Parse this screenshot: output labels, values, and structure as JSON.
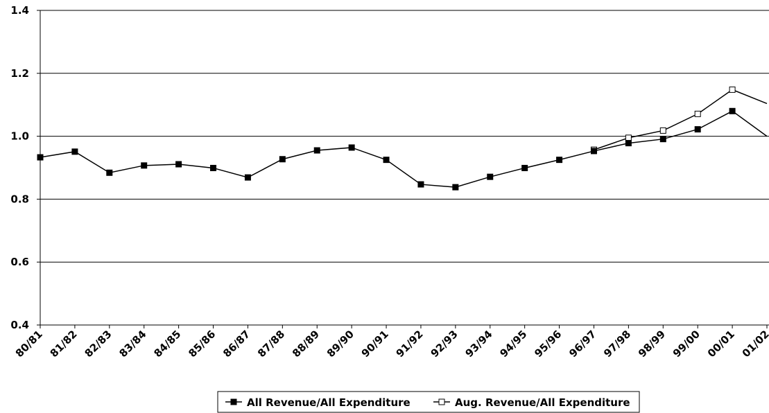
{
  "chart_data": {
    "type": "line",
    "title": "",
    "xlabel": "",
    "ylabel": "",
    "ylim": [
      0.4,
      1.4
    ],
    "yticks": [
      "0.4",
      "0.6",
      "0.8",
      "1.0",
      "1.2",
      "1.4"
    ],
    "grid": "horizontal",
    "legend_position": "bottom",
    "categories": [
      "80/81",
      "81/82",
      "82/83",
      "83/84",
      "84/85",
      "85/86",
      "86/87",
      "87/88",
      "88/89",
      "89/90",
      "90/91",
      "91/92",
      "92/93",
      "93/94",
      "94/95",
      "95/96",
      "96/97",
      "97/98",
      "98/99",
      "99/00",
      "00/01",
      "01/02"
    ],
    "series": [
      {
        "name": "All Revenue/All Expenditure",
        "marker": "filled-square",
        "color": "#000000",
        "values": [
          0.933,
          0.951,
          0.884,
          0.907,
          0.911,
          0.899,
          0.869,
          0.927,
          0.955,
          0.964,
          0.925,
          0.847,
          0.838,
          0.871,
          0.899,
          0.925,
          0.953,
          0.978,
          0.991,
          1.022,
          1.08,
          1.0
        ]
      },
      {
        "name": "Aug. Revenue/All Expenditure",
        "marker": "open-square",
        "color": "#000000",
        "values": [
          null,
          null,
          null,
          null,
          null,
          null,
          null,
          null,
          null,
          null,
          null,
          null,
          null,
          null,
          null,
          null,
          0.957,
          0.995,
          1.018,
          1.071,
          1.148,
          1.104
        ]
      }
    ]
  }
}
